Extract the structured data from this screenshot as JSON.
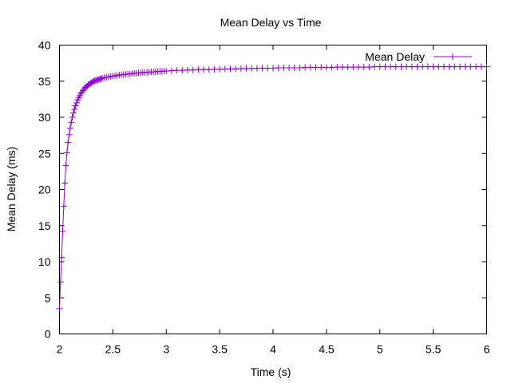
{
  "chart_data": {
    "type": "line",
    "title": "Mean Delay vs Time",
    "xlabel": "Time (s)",
    "ylabel": "Mean Delay (ms)",
    "xlim": [
      2,
      6
    ],
    "ylim": [
      0,
      40
    ],
    "xticks": [
      2,
      2.5,
      3,
      3.5,
      4,
      4.5,
      5,
      5.5,
      6
    ],
    "xtick_labels": [
      "2",
      "2.5",
      "3",
      "3.5",
      "4",
      "4.5",
      "5",
      "5.5",
      "6"
    ],
    "yticks": [
      0,
      5,
      10,
      15,
      20,
      25,
      30,
      35,
      40
    ],
    "ytick_labels": [
      "0",
      "5",
      "10",
      "15",
      "20",
      "25",
      "30",
      "35",
      "40"
    ],
    "grid": false,
    "legend": "top-right",
    "series": [
      {
        "name": "Mean Delay",
        "color": "#9400d3",
        "marker": "plus",
        "x": [
          2.0,
          2.01,
          2.02,
          2.03,
          2.04,
          2.05,
          2.06,
          2.07,
          2.08,
          2.09,
          2.1,
          2.11,
          2.12,
          2.13,
          2.14,
          2.15,
          2.16,
          2.17,
          2.18,
          2.19,
          2.2,
          2.21,
          2.22,
          2.23,
          2.24,
          2.25,
          2.26,
          2.27,
          2.28,
          2.29,
          2.3,
          2.31,
          2.32,
          2.33,
          2.34,
          2.35,
          2.36,
          2.37,
          2.38,
          2.39,
          2.4,
          2.42,
          2.44,
          2.46,
          2.48,
          2.5,
          2.52,
          2.54,
          2.56,
          2.58,
          2.6,
          2.62,
          2.64,
          2.66,
          2.68,
          2.7,
          2.72,
          2.74,
          2.76,
          2.78,
          2.8,
          2.82,
          2.84,
          2.86,
          2.88,
          2.9,
          2.92,
          2.94,
          2.96,
          2.98,
          3.0,
          3.05,
          3.1,
          3.15,
          3.2,
          3.25,
          3.3,
          3.35,
          3.4,
          3.45,
          3.5,
          3.55,
          3.6,
          3.65,
          3.7,
          3.75,
          3.8,
          3.85,
          3.9,
          3.95,
          4.0,
          4.05,
          4.1,
          4.15,
          4.2,
          4.25,
          4.3,
          4.35,
          4.4,
          4.45,
          4.5,
          4.55,
          4.6,
          4.65,
          4.7,
          4.75,
          4.8,
          4.85,
          4.9,
          4.95,
          5.0,
          5.05,
          5.1,
          5.15,
          5.2,
          5.25,
          5.3,
          5.35,
          5.4,
          5.45,
          5.5,
          5.55,
          5.6,
          5.65,
          5.7,
          5.75,
          5.8,
          5.85,
          5.9,
          5.95,
          6.0
        ],
        "values": [
          3.5,
          7.2,
          10.6,
          14.2,
          17.7,
          20.9,
          23.3,
          25.1,
          26.5,
          27.6,
          28.5,
          29.3,
          30.0,
          30.6,
          31.1,
          31.6,
          32.0,
          32.4,
          32.7,
          33.0,
          33.3,
          33.5,
          33.7,
          33.9,
          34.1,
          34.2,
          34.35,
          34.5,
          34.6,
          34.7,
          34.8,
          34.9,
          35.0,
          35.05,
          35.1,
          35.15,
          35.2,
          35.25,
          35.3,
          35.35,
          35.4,
          35.5,
          35.55,
          35.6,
          35.65,
          35.7,
          35.75,
          35.8,
          35.85,
          35.9,
          35.9,
          35.95,
          36.0,
          36.0,
          36.05,
          36.1,
          36.1,
          36.15,
          36.15,
          36.2,
          36.2,
          36.25,
          36.25,
          36.3,
          36.3,
          36.3,
          36.35,
          36.35,
          36.35,
          36.4,
          36.4,
          36.45,
          36.5,
          36.5,
          36.55,
          36.55,
          36.6,
          36.6,
          36.6,
          36.65,
          36.65,
          36.7,
          36.7,
          36.7,
          36.75,
          36.75,
          36.75,
          36.8,
          36.8,
          36.8,
          36.8,
          36.85,
          36.85,
          36.85,
          36.85,
          36.85,
          36.9,
          36.9,
          36.9,
          36.9,
          36.9,
          36.9,
          36.95,
          36.95,
          36.95,
          36.95,
          36.95,
          36.95,
          36.95,
          37.0,
          37.0,
          37.0,
          37.0,
          37.0,
          37.0,
          37.0,
          37.0,
          37.0,
          37.0,
          37.0,
          37.0,
          37.0,
          37.0,
          37.0,
          37.0,
          37.0,
          37.0,
          37.0,
          37.0,
          37.0,
          37.0
        ]
      }
    ]
  }
}
